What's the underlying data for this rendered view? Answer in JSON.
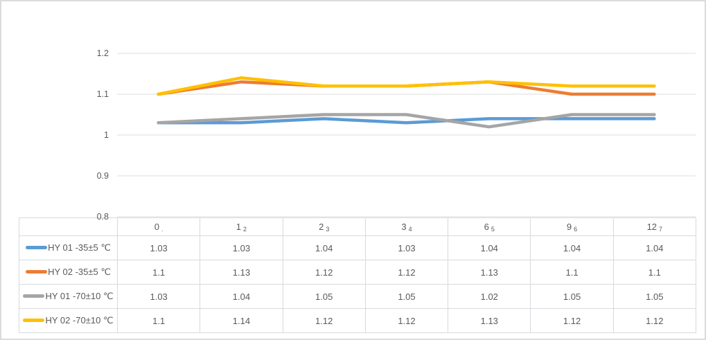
{
  "chart_data": {
    "type": "line",
    "title": "",
    "xlabel": "",
    "ylabel": "",
    "categories": [
      "0",
      "1",
      "2",
      "3",
      "6",
      "9",
      "12"
    ],
    "category_overlays": [
      ".",
      "2",
      "3",
      "4",
      "5",
      "6",
      "7"
    ],
    "yticks": [
      1.2,
      1.1,
      1,
      0.9,
      0.8
    ],
    "ylim": [
      0.8,
      1.2
    ],
    "grid": true,
    "legend_position": "data-table-left",
    "colors": {
      "blue": "#5B9BD5",
      "orange": "#ED7D31",
      "gray": "#A5A5A5",
      "yellow": "#FFC000"
    },
    "series": [
      {
        "name": "HY 01 -35±5 ℃",
        "color": "#5B9BD5",
        "values": [
          1.03,
          1.03,
          1.04,
          1.03,
          1.04,
          1.04,
          1.04
        ]
      },
      {
        "name": "HY 02 -35±5 ℃",
        "color": "#ED7D31",
        "values": [
          1.1,
          1.13,
          1.12,
          1.12,
          1.13,
          1.1,
          1.1
        ]
      },
      {
        "name": "HY 01 -70±10 ℃",
        "color": "#A5A5A5",
        "values": [
          1.03,
          1.04,
          1.05,
          1.05,
          1.02,
          1.05,
          1.05
        ]
      },
      {
        "name": "HY 02 -70±10 ℃",
        "color": "#FFC000",
        "values": [
          1.1,
          1.14,
          1.12,
          1.12,
          1.13,
          1.12,
          1.12
        ]
      }
    ]
  }
}
